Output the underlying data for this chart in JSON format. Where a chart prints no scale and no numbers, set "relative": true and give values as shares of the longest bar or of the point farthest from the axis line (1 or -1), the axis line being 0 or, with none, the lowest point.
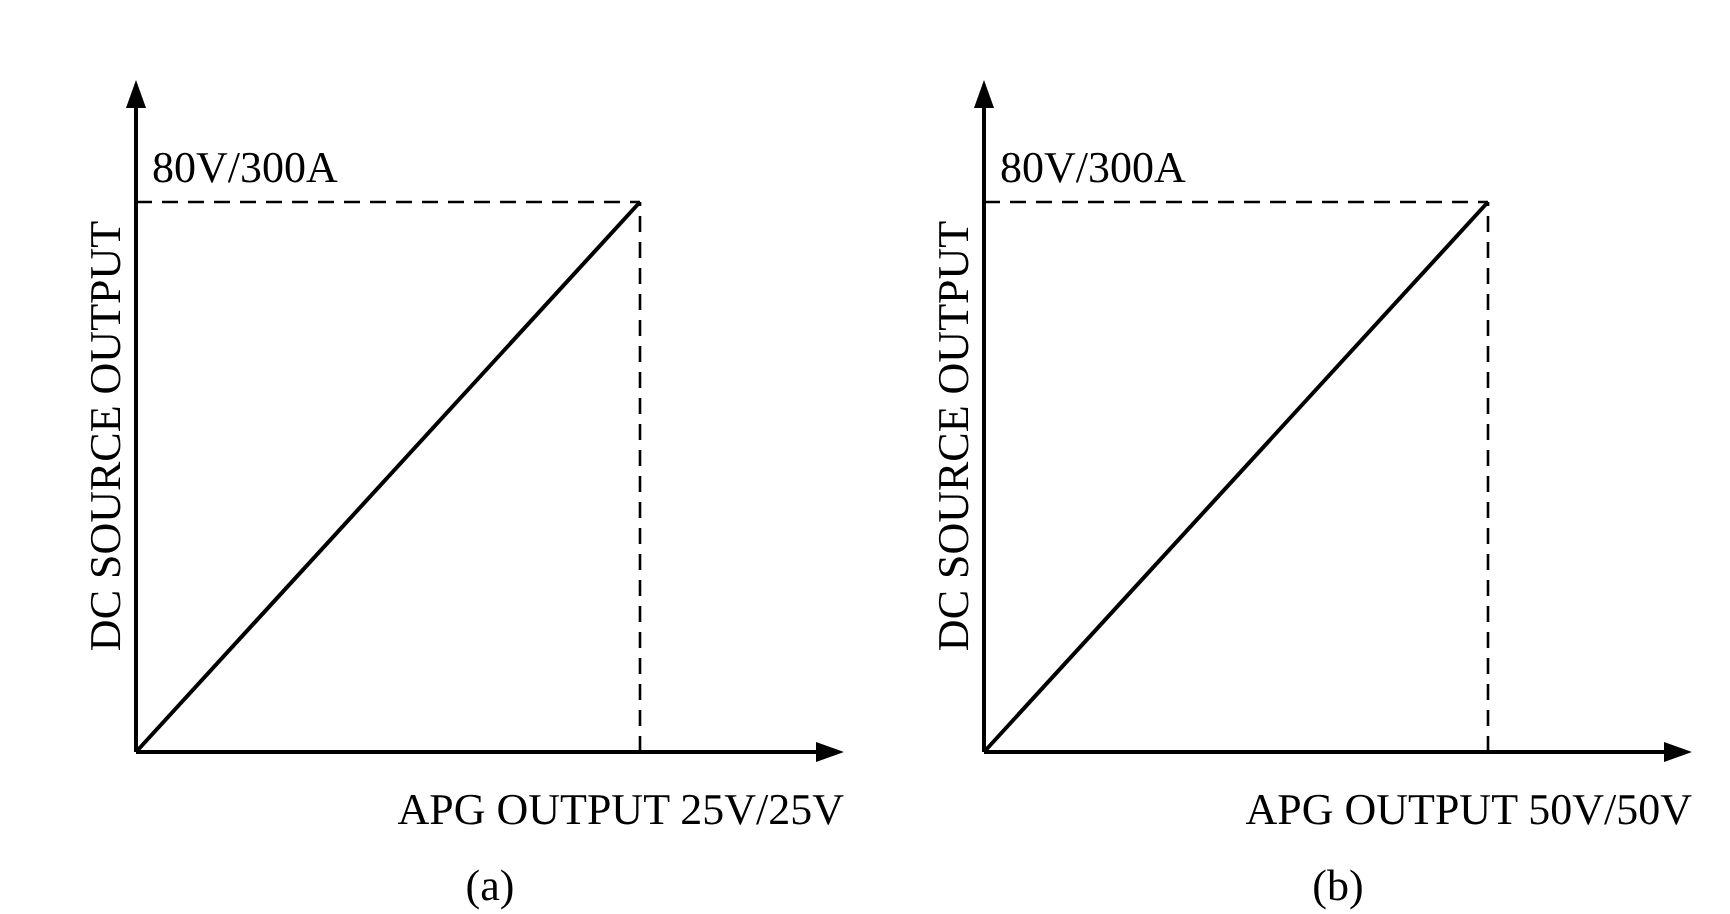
{
  "chart_data": [
    {
      "type": "line",
      "title": "(a)",
      "xlabel": "APG OUTPUT 25V/25V",
      "ylabel": "DC SOURCE OUTPUT",
      "relative": true,
      "categories": [
        null,
        null
      ],
      "grid": false,
      "legend": false,
      "marker": "none",
      "line_style": "solid",
      "series": [
        {
          "color": "#000000",
          "values": [
            0,
            1
          ]
        }
      ],
      "annotations": [
        "80V/300A"
      ]
    },
    {
      "type": "line",
      "title": "(b)",
      "xlabel": "APG OUTPUT 50V/50V",
      "ylabel": "DC SOURCE OUTPUT",
      "relative": true,
      "categories": [
        null,
        null
      ],
      "grid": false,
      "legend": false,
      "marker": "none",
      "line_style": "solid",
      "series": [
        {
          "color": "#000000",
          "values": [
            0,
            1
          ]
        }
      ],
      "annotations": [
        "80V/300A"
      ]
    }
  ]
}
